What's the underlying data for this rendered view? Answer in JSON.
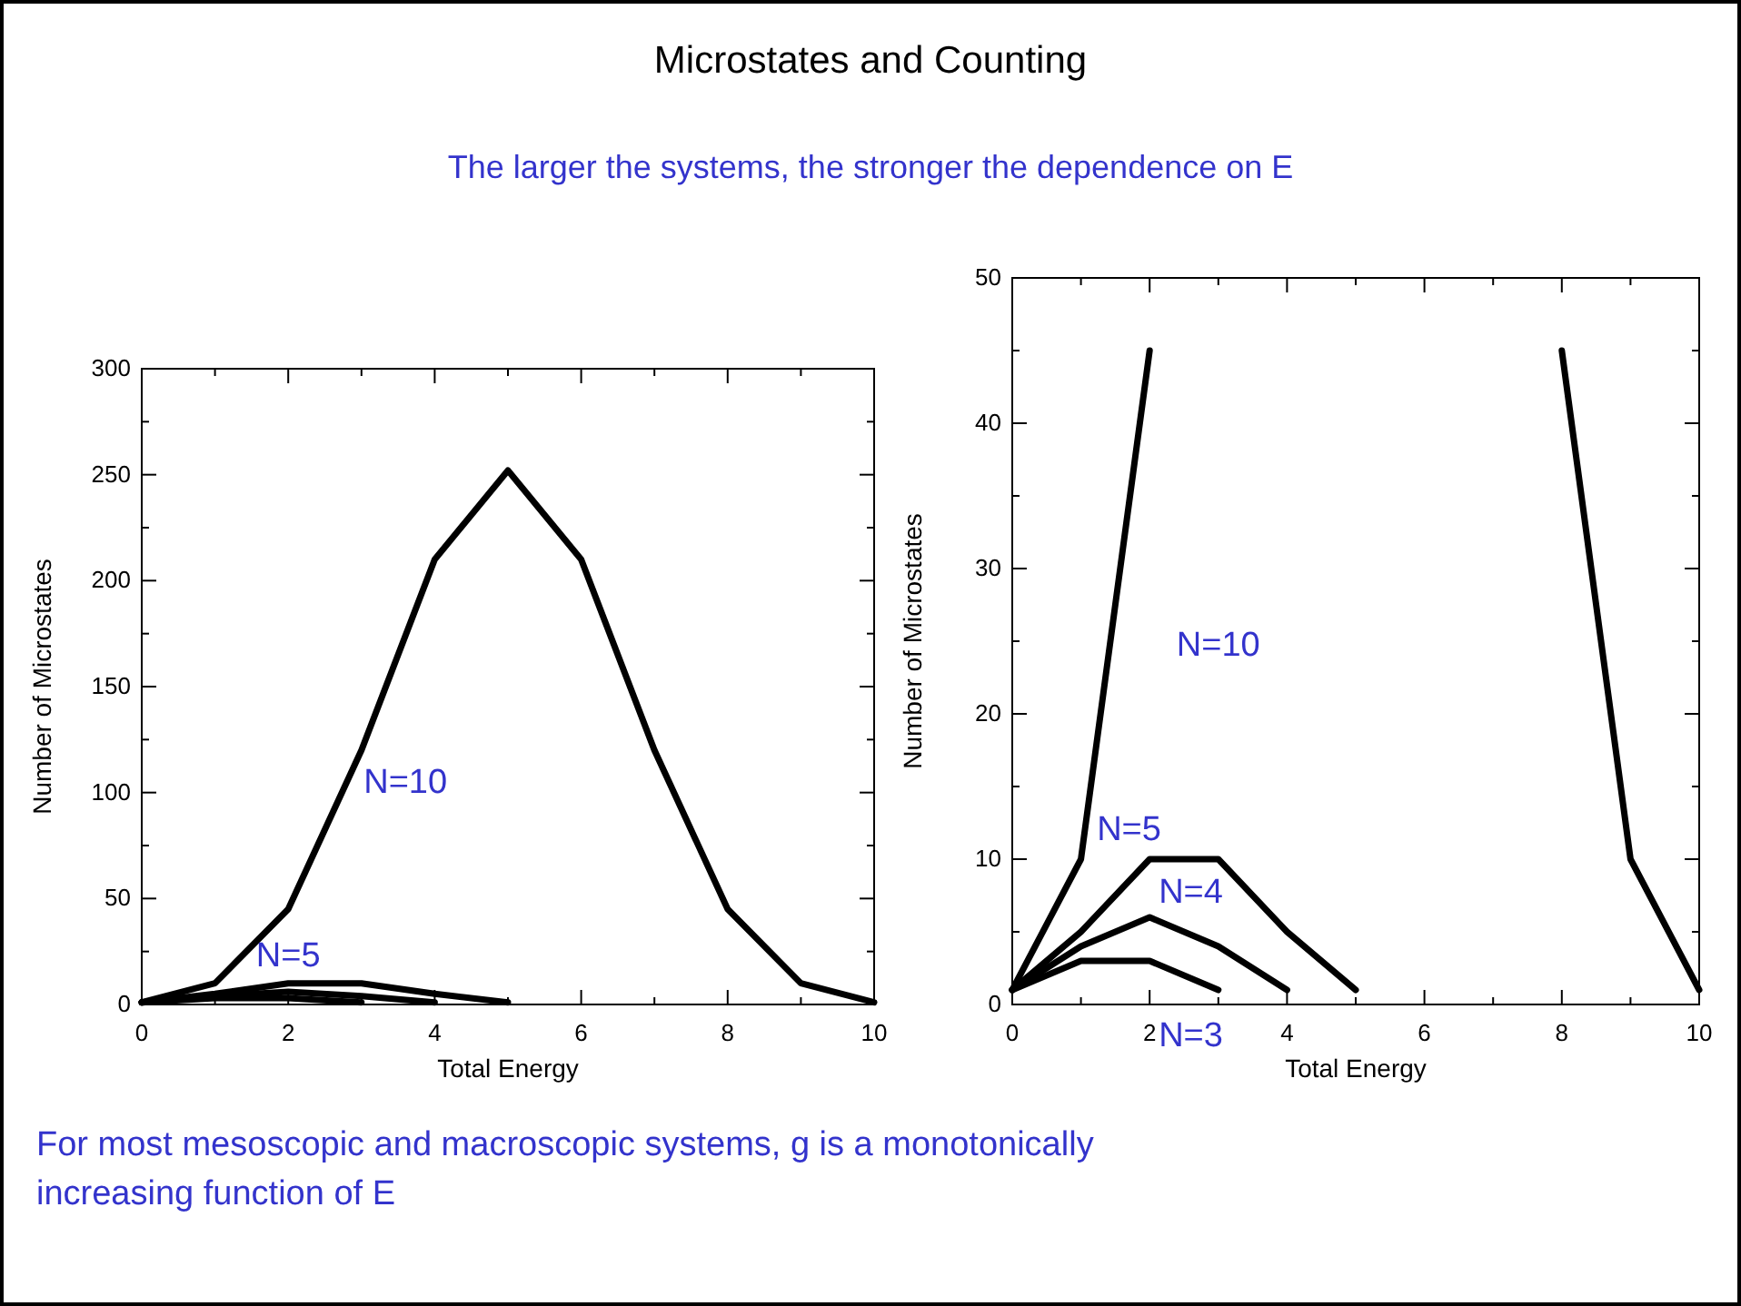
{
  "chart_data": [
    {
      "type": "line",
      "title": "Microstates and Counting",
      "subtitle": "The larger the systems, the stronger the dependence on E",
      "xlabel": "Total Energy",
      "ylabel": "Number of Microstates",
      "xlim": [
        0,
        10
      ],
      "ylim": [
        0,
        300
      ],
      "xticks": [
        0,
        {
          "value": 1,
          "label": null
        },
        2,
        {
          "value": 3,
          "label": null
        },
        4,
        {
          "value": 5,
          "label": null
        },
        6,
        {
          "value": 7,
          "label": null
        },
        8,
        {
          "value": 9,
          "label": null
        },
        10
      ],
      "yticks": [
        0,
        {
          "value": 25,
          "label": null
        },
        50,
        {
          "value": 75,
          "label": null
        },
        100,
        {
          "value": 125,
          "label": null
        },
        150,
        {
          "value": 175,
          "label": null
        },
        200,
        {
          "value": 225,
          "label": null
        },
        250,
        {
          "value": 275,
          "label": null
        },
        300
      ],
      "series": [
        {
          "name": "N=10",
          "color": "#000000",
          "x": [
            0,
            1,
            2,
            3,
            4,
            5,
            6,
            7,
            8,
            9,
            10
          ],
          "values": [
            1,
            10,
            45,
            120,
            210,
            252,
            210,
            120,
            45,
            10,
            1
          ]
        },
        {
          "name": "N=5",
          "color": "#000000",
          "x": [
            0,
            1,
            2,
            3,
            4,
            5
          ],
          "values": [
            1,
            5,
            10,
            10,
            5,
            1
          ]
        },
        {
          "color": "#000000",
          "x": [
            0,
            1,
            2,
            3,
            4
          ],
          "values": [
            1,
            4,
            6,
            4,
            1
          ]
        },
        {
          "color": "#000000",
          "x": [
            0,
            1,
            2,
            3
          ],
          "values": [
            1,
            3,
            3,
            1
          ]
        }
      ],
      "annotations": [
        "For most mesoscopic and macroscopic systems, g is a monotonically increasing function of E"
      ]
    },
    {
      "type": "line",
      "xlabel": "Total Energy",
      "ylabel": "Number of Microstates",
      "xlim": [
        0,
        10
      ],
      "ylim": [
        0,
        50
      ],
      "xticks": [
        0,
        {
          "value": 1,
          "label": null
        },
        2,
        {
          "value": 3,
          "label": null
        },
        4,
        {
          "value": 5,
          "label": null
        },
        6,
        {
          "value": 7,
          "label": null
        },
        8,
        {
          "value": 9,
          "label": null
        },
        10
      ],
      "yticks": [
        0,
        {
          "value": 5,
          "label": null
        },
        10,
        {
          "value": 15,
          "label": null
        },
        20,
        {
          "value": 25,
          "label": null
        },
        30,
        {
          "value": 35,
          "label": null
        },
        40,
        {
          "value": 45,
          "label": null
        },
        50
      ],
      "series": [
        {
          "name": "N=10",
          "color": "#000000",
          "x": [
            0,
            1,
            2,
            3,
            4,
            5,
            6,
            7,
            8,
            9,
            10
          ],
          "values": [
            1,
            10,
            45,
            null,
            null,
            null,
            null,
            null,
            45,
            10,
            1
          ]
        },
        {
          "name": "N=5",
          "color": "#000000",
          "x": [
            0,
            1,
            2,
            3,
            4,
            5
          ],
          "values": [
            1,
            5,
            10,
            10,
            5,
            1
          ]
        },
        {
          "name": "N=4",
          "color": "#000000",
          "x": [
            0,
            1,
            2,
            3,
            4
          ],
          "values": [
            1,
            4,
            6,
            4,
            1
          ]
        },
        {
          "name": "N=3",
          "color": "#000000",
          "x": [
            0,
            1,
            2,
            3
          ],
          "values": [
            1,
            3,
            3,
            1
          ]
        }
      ]
    }
  ]
}
